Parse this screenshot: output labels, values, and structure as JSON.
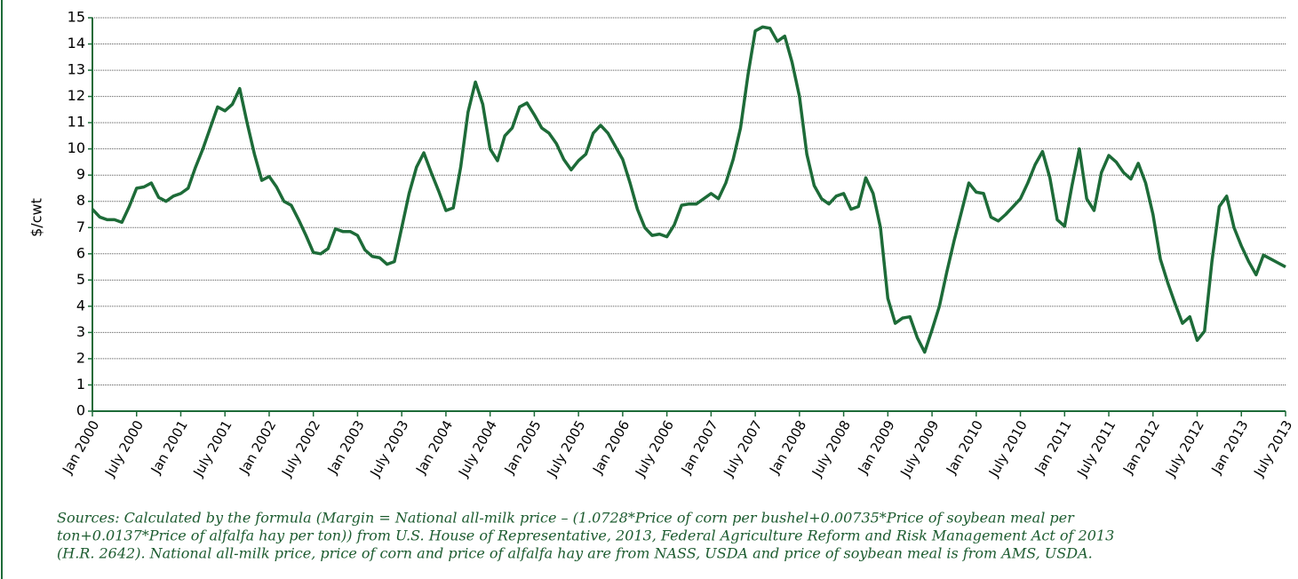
{
  "chart_data": {
    "type": "line",
    "y_label": "$/cwt",
    "color": "#1d6b38",
    "grid": true,
    "ylim": [
      0,
      15
    ],
    "yticks": [
      0,
      1,
      2,
      3,
      4,
      5,
      6,
      7,
      8,
      9,
      10,
      11,
      12,
      13,
      14,
      15
    ],
    "categories": [
      "Jan 2000",
      null,
      null,
      null,
      null,
      null,
      "July 2000",
      null,
      null,
      null,
      null,
      null,
      "Jan 2001",
      null,
      null,
      null,
      null,
      null,
      "July 2001",
      null,
      null,
      null,
      null,
      null,
      "Jan 2002",
      null,
      null,
      null,
      null,
      null,
      "July 2002",
      null,
      null,
      null,
      null,
      null,
      "Jan 2003",
      null,
      null,
      null,
      null,
      null,
      "July 2003",
      null,
      null,
      null,
      null,
      null,
      "Jan 2004",
      null,
      null,
      null,
      null,
      null,
      "July 2004",
      null,
      null,
      null,
      null,
      null,
      "Jan 2005",
      null,
      null,
      null,
      null,
      null,
      "July 2005",
      null,
      null,
      null,
      null,
      null,
      "Jan 2006",
      null,
      null,
      null,
      null,
      null,
      "July 2006",
      null,
      null,
      null,
      null,
      null,
      "Jan 2007",
      null,
      null,
      null,
      null,
      null,
      "July 2007",
      null,
      null,
      null,
      null,
      null,
      "Jan 2008",
      null,
      null,
      null,
      null,
      null,
      "July 2008",
      null,
      null,
      null,
      null,
      null,
      "Jan 2009",
      null,
      null,
      null,
      null,
      null,
      "July 2009",
      null,
      null,
      null,
      null,
      null,
      "Jan 2010",
      null,
      null,
      null,
      null,
      null,
      "July 2010",
      null,
      null,
      null,
      null,
      null,
      "Jan 2011",
      null,
      null,
      null,
      null,
      null,
      "July 2011",
      null,
      null,
      null,
      null,
      null,
      "Jan 2012",
      null,
      null,
      null,
      null,
      null,
      "July 2012",
      null,
      null,
      null,
      null,
      null,
      "Jan 2013",
      null,
      null,
      null,
      null,
      null,
      "July 2013"
    ],
    "values": [
      7.7,
      7.4,
      7.3,
      7.3,
      7.2,
      7.8,
      8.5,
      8.55,
      8.7,
      8.15,
      8.0,
      8.2,
      8.3,
      8.5,
      9.3,
      10.0,
      10.8,
      11.6,
      11.45,
      11.7,
      12.3,
      11.0,
      9.8,
      8.8,
      8.95,
      8.55,
      8.0,
      7.85,
      7.3,
      6.7,
      6.05,
      6.0,
      6.2,
      6.95,
      6.85,
      6.85,
      6.7,
      6.15,
      5.9,
      5.85,
      5.6,
      5.7,
      7.0,
      8.3,
      9.3,
      9.85,
      9.1,
      8.4,
      7.65,
      7.75,
      9.3,
      11.4,
      12.55,
      11.7,
      10.0,
      9.55,
      10.5,
      10.8,
      11.6,
      11.75,
      11.3,
      10.8,
      10.6,
      10.2,
      9.6,
      9.2,
      9.55,
      9.8,
      10.6,
      10.9,
      10.6,
      10.1,
      9.6,
      8.7,
      7.7,
      7.0,
      6.7,
      6.75,
      6.65,
      7.1,
      7.85,
      7.9,
      7.9,
      8.1,
      8.3,
      8.1,
      8.7,
      9.6,
      10.8,
      12.8,
      14.5,
      14.65,
      14.6,
      14.1,
      14.3,
      13.3,
      12.0,
      9.8,
      8.6,
      8.1,
      7.9,
      8.2,
      8.3,
      7.7,
      7.8,
      8.9,
      8.3,
      7.0,
      4.3,
      3.35,
      3.55,
      3.6,
      2.8,
      2.25,
      3.1,
      4.0,
      5.3,
      6.5,
      7.6,
      8.7,
      8.35,
      8.3,
      7.4,
      7.25,
      7.5,
      7.8,
      8.1,
      8.7,
      9.4,
      9.9,
      8.9,
      7.3,
      7.05,
      8.6,
      10.0,
      8.1,
      7.65,
      9.1,
      9.75,
      9.5,
      9.1,
      8.85,
      9.45,
      8.7,
      7.5,
      5.8,
      4.9,
      4.1,
      3.35,
      3.6,
      2.7,
      3.05,
      5.7,
      7.8,
      8.2,
      7.0,
      6.3,
      5.7,
      5.2,
      5.95,
      5.8,
      5.65,
      5.5
    ],
    "source_lines": [
      "Sources: Calculated by the formula (Margin = National all-milk price – (1.0728*Price of corn per bushel+0.00735*Price of soybean meal per",
      "ton+0.0137*Price of alfalfa hay per ton)) from U.S. House of Representative, 2013, Federal Agriculture Reform and Risk Management Act of 2013",
      "(H.R. 2642). National all-milk price, price of corn and price of alfalfa hay are from NASS, USDA and price of soybean meal is from AMS, USDA."
    ]
  }
}
